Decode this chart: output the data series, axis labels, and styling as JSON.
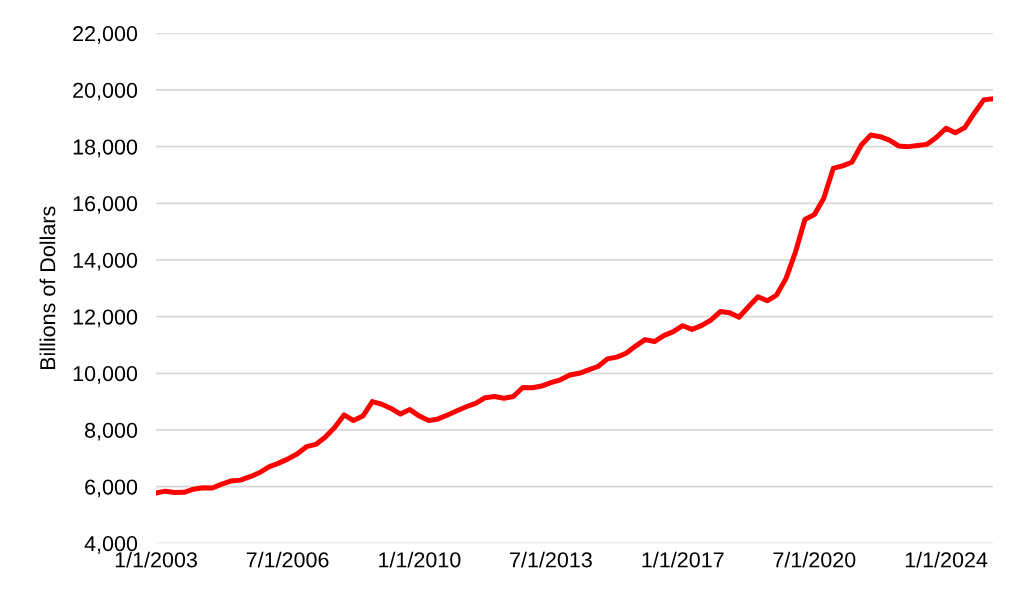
{
  "chart_data": {
    "type": "line",
    "ylabel": "Billions of Dollars",
    "x": [
      "2003-01",
      "2003-04",
      "2003-07",
      "2003-10",
      "2004-01",
      "2004-04",
      "2004-07",
      "2004-10",
      "2005-01",
      "2005-04",
      "2005-07",
      "2005-10",
      "2006-01",
      "2006-04",
      "2006-07",
      "2006-10",
      "2007-01",
      "2007-04",
      "2007-07",
      "2007-10",
      "2008-01",
      "2008-04",
      "2008-07",
      "2008-10",
      "2009-01",
      "2009-04",
      "2009-07",
      "2009-10",
      "2010-01",
      "2010-04",
      "2010-07",
      "2010-10",
      "2011-01",
      "2011-04",
      "2011-07",
      "2011-10",
      "2012-01",
      "2012-04",
      "2012-07",
      "2012-10",
      "2013-01",
      "2013-04",
      "2013-07",
      "2013-10",
      "2014-01",
      "2014-04",
      "2014-07",
      "2014-10",
      "2015-01",
      "2015-04",
      "2015-07",
      "2015-10",
      "2016-01",
      "2016-04",
      "2016-07",
      "2016-10",
      "2017-01",
      "2017-04",
      "2017-07",
      "2017-10",
      "2018-01",
      "2018-04",
      "2018-07",
      "2018-10",
      "2019-01",
      "2019-04",
      "2019-07",
      "2019-10",
      "2020-01",
      "2020-04",
      "2020-07",
      "2020-10",
      "2021-01",
      "2021-04",
      "2021-07",
      "2021-10",
      "2022-01",
      "2022-04",
      "2022-07",
      "2022-10",
      "2023-01",
      "2023-04",
      "2023-07",
      "2023-10",
      "2024-01",
      "2024-04",
      "2024-07",
      "2024-10",
      "2025-01",
      "2025-04"
    ],
    "series": [
      {
        "color": "#ff0000",
        "values": [
          5770,
          5840,
          5790,
          5800,
          5910,
          5960,
          5950,
          6090,
          6200,
          6230,
          6350,
          6490,
          6700,
          6820,
          6970,
          7150,
          7410,
          7490,
          7740,
          8090,
          8530,
          8330,
          8490,
          9000,
          8910,
          8760,
          8560,
          8720,
          8490,
          8330,
          8390,
          8530,
          8680,
          8820,
          8940,
          9140,
          9180,
          9120,
          9180,
          9500,
          9490,
          9550,
          9670,
          9770,
          9940,
          10000,
          10120,
          10240,
          10510,
          10570,
          10710,
          10960,
          11190,
          11120,
          11330,
          11470,
          11680,
          11550,
          11680,
          11880,
          12180,
          12140,
          11980,
          12350,
          12700,
          12560,
          12760,
          13350,
          14290,
          15430,
          15600,
          16180,
          17230,
          17320,
          17450,
          18060,
          18410,
          18350,
          18230,
          18020,
          18000,
          18040,
          18080,
          18330,
          18650,
          18490,
          18670,
          19180,
          19650,
          19690
        ]
      }
    ],
    "xlim": [
      "2003-01",
      "2025-04"
    ],
    "xticks": [
      {
        "value": "2003-01-01",
        "label": "1/1/2003"
      },
      {
        "value": "2006-07-01",
        "label": "7/1/2006"
      },
      {
        "value": "2010-01-01",
        "label": "1/1/2010"
      },
      {
        "value": "2013-07-01",
        "label": "7/1/2013"
      },
      {
        "value": "2017-01-01",
        "label": "1/1/2017"
      },
      {
        "value": "2020-07-01",
        "label": "7/1/2020"
      },
      {
        "value": "2024-01-01",
        "label": "1/1/2024"
      }
    ],
    "ylim": [
      4000,
      22000
    ],
    "yticks": [
      {
        "value": 4000,
        "label": "4,000"
      },
      {
        "value": 6000,
        "label": "6,000"
      },
      {
        "value": 8000,
        "label": "8,000"
      },
      {
        "value": 10000,
        "label": "10,000"
      },
      {
        "value": 12000,
        "label": "12,000"
      },
      {
        "value": 14000,
        "label": "14,000"
      },
      {
        "value": 16000,
        "label": "16,000"
      },
      {
        "value": 18000,
        "label": "18,000"
      },
      {
        "value": 20000,
        "label": "20,000"
      },
      {
        "value": 22000,
        "label": "22,000"
      }
    ],
    "grid": "y",
    "line_style": "solid"
  }
}
